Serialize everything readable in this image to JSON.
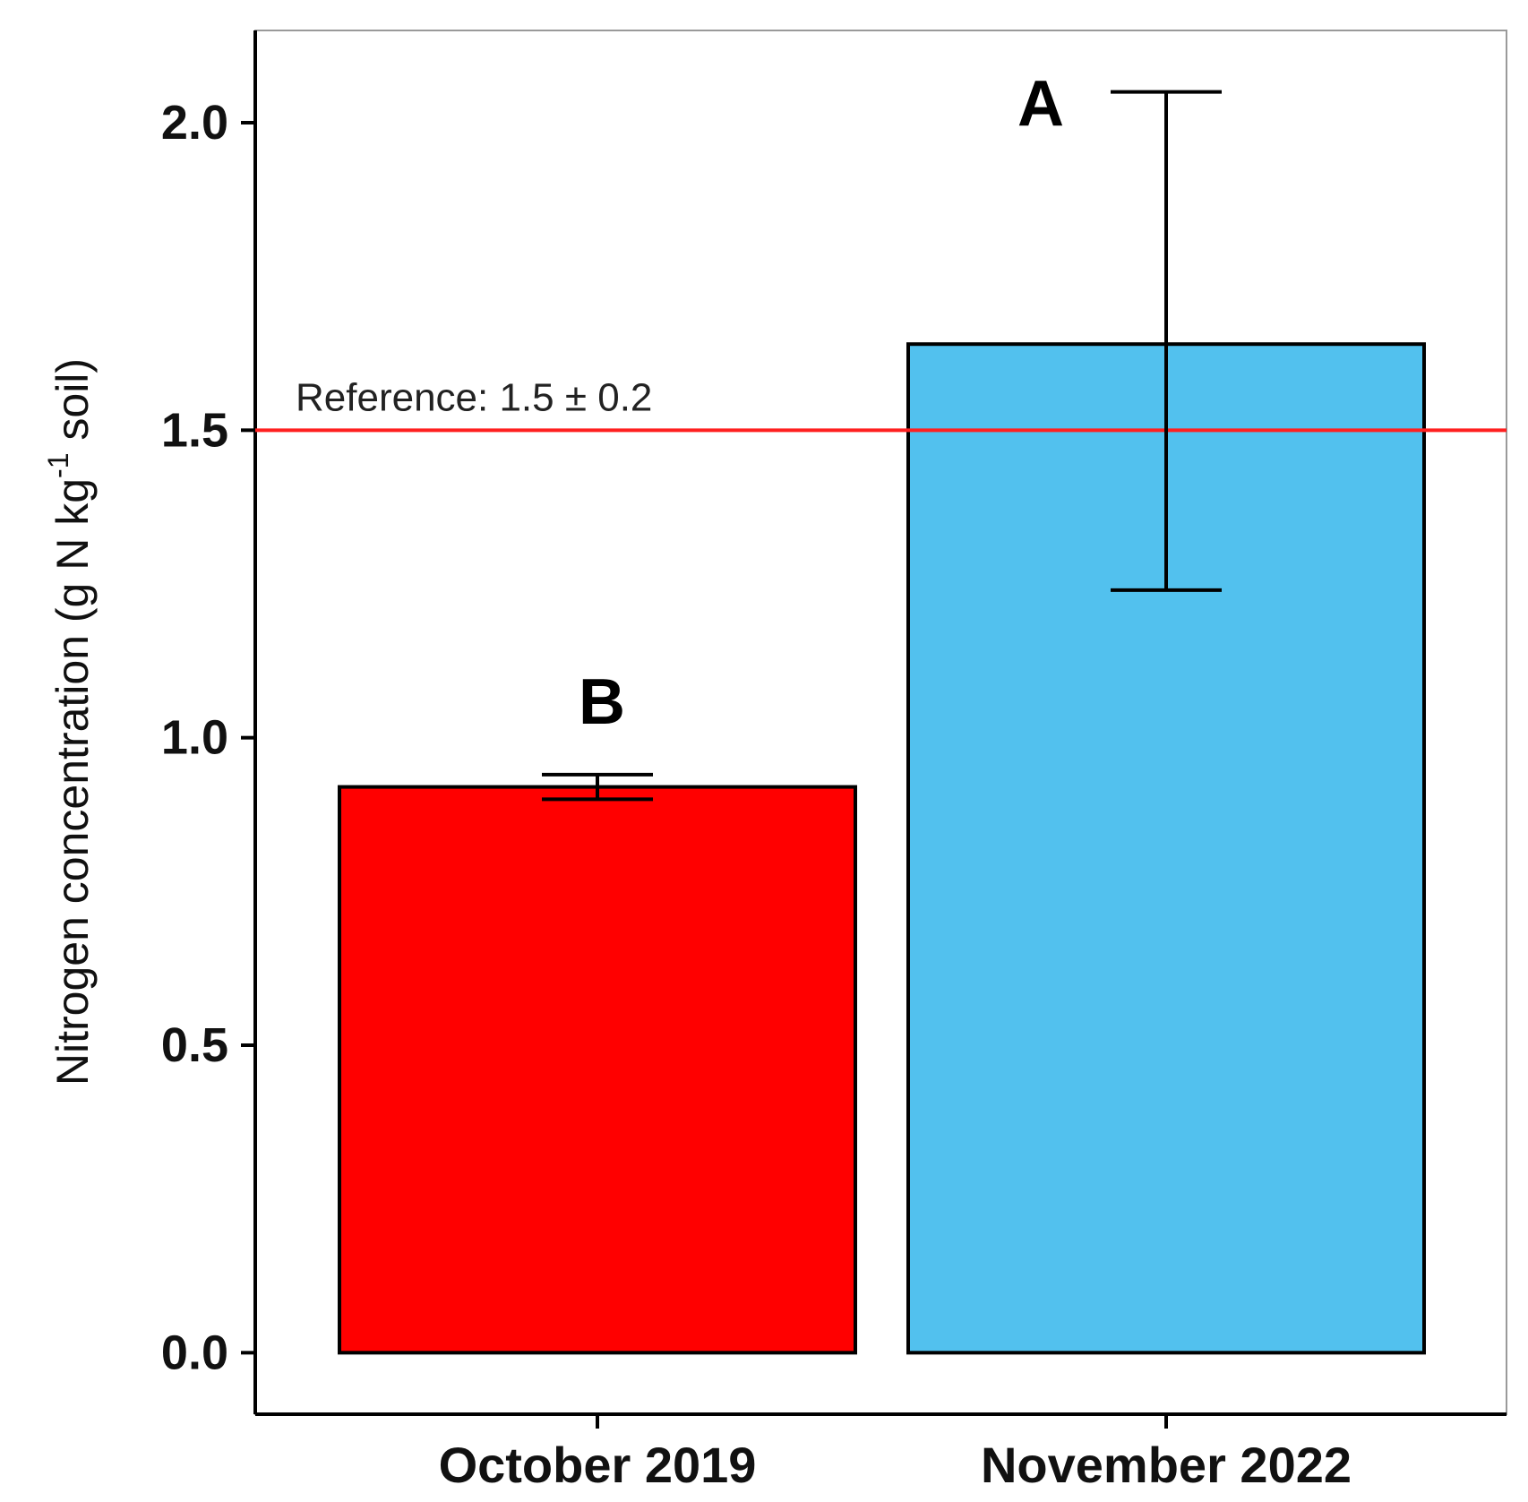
{
  "chart_data": {
    "type": "bar",
    "categories": [
      "October 2019",
      "November 2022"
    ],
    "values": [
      0.92,
      1.64
    ],
    "error_low": [
      0.9,
      1.24
    ],
    "error_high": [
      0.94,
      2.05
    ],
    "significance_letters": [
      "B",
      "A"
    ],
    "colors": [
      "#ff0000",
      "#52c1ee"
    ],
    "ylabel_main": "Nitrogen concentration (g N kg",
    "ylabel_sup": "-1",
    "ylabel_tail": " soil)",
    "yticks": [
      "0.0",
      "0.5",
      "1.0",
      "1.5",
      "2.0"
    ],
    "ylim": [
      -0.1,
      2.15
    ],
    "reference_line": {
      "value": 1.5,
      "label": "Reference: 1.5 ± 0.2",
      "color": "#ff2020"
    },
    "grid": false,
    "legend": "none"
  }
}
